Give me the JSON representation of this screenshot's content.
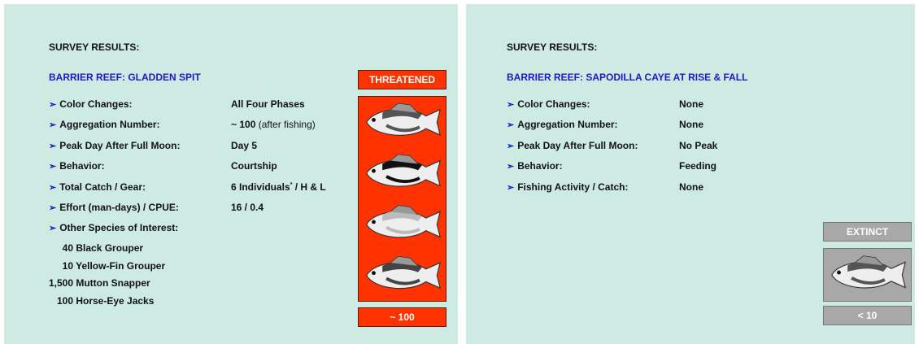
{
  "left": {
    "heading": "SURVEY RESULTS:",
    "site": "BARRIER REEF:  GLADDEN SPIT",
    "status": "THREATENED",
    "count": "~ 100",
    "rows": [
      {
        "label": "Color Changes:",
        "value": [
          {
            "text": "All Four Phases",
            "style": "bold"
          }
        ]
      },
      {
        "label": "Aggregation Number:",
        "value": [
          {
            "text": "~ 100",
            "style": "bold"
          },
          {
            "text": " (after fishing)",
            "style": "normal"
          }
        ]
      },
      {
        "label": "Peak Day After Full Moon:",
        "value": [
          {
            "text": "Day 5",
            "style": "bold"
          }
        ]
      },
      {
        "label": "Behavior:",
        "value": [
          {
            "text": "Courtship",
            "style": "bold"
          }
        ]
      },
      {
        "label": "Total Catch / Gear:",
        "value": [
          {
            "text": "6 Individuals",
            "style": "bold"
          },
          {
            "text": "*",
            "style": "sup"
          },
          {
            "text": " / H & L",
            "style": "bold"
          }
        ]
      },
      {
        "label": "Effort (man-days) / CPUE:",
        "value": [
          {
            "text": "16 / 0.4",
            "style": "bold"
          }
        ]
      },
      {
        "label": "Other Species of Interest:",
        "value": []
      }
    ],
    "species": [
      {
        "count": "40",
        "name": "Black Grouper"
      },
      {
        "count": "10",
        "name": "Yellow-Fin Grouper"
      },
      {
        "count": "1,500",
        "name": "Mutton Snapper"
      },
      {
        "count": "100",
        "name": "Horse-Eye Jacks"
      }
    ]
  },
  "right": {
    "heading": "SURVEY RESULTS:",
    "site": "BARRIER REEF:  SAPODILLA CAYE AT RISE & FALL",
    "status": "EXTINCT",
    "count": "< 10",
    "rows": [
      {
        "label": "Color Changes:",
        "value": [
          {
            "text": "None",
            "style": "bold"
          }
        ]
      },
      {
        "label": "Aggregation Number:",
        "value": [
          {
            "text": "None",
            "style": "bold"
          }
        ]
      },
      {
        "label": "Peak Day After Full Moon:",
        "value": [
          {
            "text": "No Peak",
            "style": "bold"
          }
        ]
      },
      {
        "label": "Behavior:",
        "value": [
          {
            "text": "Feeding",
            "style": "bold"
          }
        ]
      },
      {
        "label": "Fishing Activity / Catch:",
        "value": [
          {
            "text": "None",
            "style": "bold"
          }
        ]
      }
    ]
  }
}
